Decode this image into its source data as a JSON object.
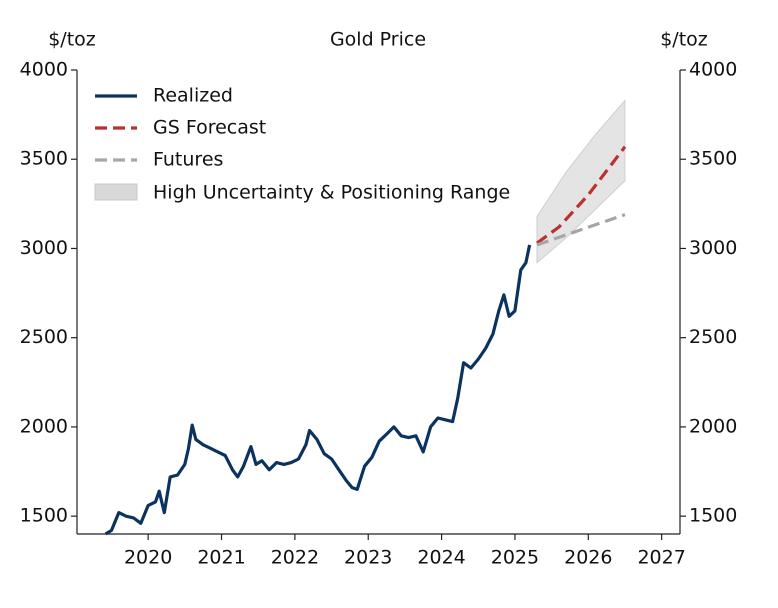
{
  "chart_data": {
    "type": "line",
    "title": "Gold Price",
    "y_label": "$/toz",
    "y2_label": "$/toz",
    "xlim": [
      2019.03,
      2027.25
    ],
    "xticks": [
      2020,
      2021,
      2022,
      2023,
      2024,
      2025,
      2026,
      2027
    ],
    "ylim": [
      1400,
      4000
    ],
    "yticks": [
      1500,
      2000,
      2500,
      3000,
      3500,
      4000
    ],
    "y2lim": [
      1400,
      4000
    ],
    "y2ticks": [
      1500,
      2000,
      2500,
      3000,
      3500,
      4000
    ],
    "legend": "upper left",
    "series": [
      {
        "name": "Realized",
        "color": "#0b3360",
        "dash": "solid",
        "x": [
          2019.42,
          2019.5,
          2019.6,
          2019.7,
          2019.8,
          2019.9,
          2020.0,
          2020.1,
          2020.15,
          2020.22,
          2020.3,
          2020.4,
          2020.5,
          2020.55,
          2020.6,
          2020.65,
          2020.75,
          2020.85,
          2020.95,
          2021.05,
          2021.15,
          2021.22,
          2021.3,
          2021.4,
          2021.47,
          2021.55,
          2021.65,
          2021.75,
          2021.85,
          2021.95,
          2022.05,
          2022.15,
          2022.2,
          2022.3,
          2022.4,
          2022.5,
          2022.6,
          2022.7,
          2022.78,
          2022.85,
          2022.95,
          2023.05,
          2023.15,
          2023.25,
          2023.35,
          2023.45,
          2023.55,
          2023.65,
          2023.75,
          2023.85,
          2023.95,
          2024.05,
          2024.15,
          2024.22,
          2024.3,
          2024.4,
          2024.5,
          2024.6,
          2024.7,
          2024.78,
          2024.85,
          2024.92,
          2025.0,
          2025.08,
          2025.15,
          2025.2
        ],
        "values": [
          1400,
          1420,
          1520,
          1500,
          1490,
          1460,
          1560,
          1580,
          1640,
          1520,
          1720,
          1730,
          1790,
          1880,
          2010,
          1930,
          1900,
          1880,
          1860,
          1840,
          1760,
          1720,
          1780,
          1890,
          1790,
          1810,
          1760,
          1800,
          1790,
          1800,
          1820,
          1900,
          1980,
          1930,
          1850,
          1820,
          1760,
          1700,
          1660,
          1650,
          1780,
          1830,
          1920,
          1960,
          2000,
          1950,
          1940,
          1950,
          1860,
          2000,
          2050,
          2040,
          2030,
          2160,
          2360,
          2330,
          2380,
          2440,
          2520,
          2650,
          2740,
          2620,
          2650,
          2880,
          2920,
          3020
        ]
      },
      {
        "name": "GS Forecast",
        "color": "#b83232",
        "dash": "dashed",
        "x": [
          2025.3,
          2025.6,
          2026.0,
          2026.5
        ],
        "values": [
          3030,
          3120,
          3300,
          3570
        ]
      },
      {
        "name": "Futures",
        "color": "#a6a6a6",
        "dash": "dashed",
        "x": [
          2025.3,
          2026.5
        ],
        "values": [
          3020,
          3190
        ]
      }
    ],
    "band": {
      "name": "High Uncertainty & Positioning Range",
      "color": "#d9d9d9",
      "x": [
        2025.3,
        2025.7,
        2026.1,
        2026.5
      ],
      "lower": [
        2920,
        3060,
        3220,
        3380
      ],
      "upper": [
        3180,
        3430,
        3640,
        3830
      ]
    }
  }
}
